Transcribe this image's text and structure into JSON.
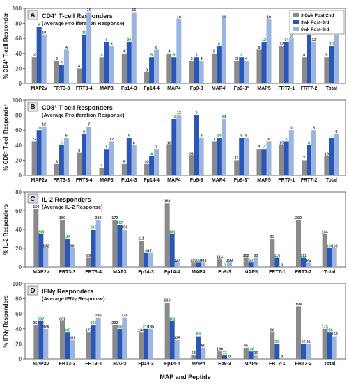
{
  "colors": {
    "series1": "#8a8a8a",
    "series2": "#2a56b8",
    "series3": "#9bb4e0",
    "count_label_color": "#1a9a3a",
    "letter_box": "#dfe6f2"
  },
  "legend": [
    "3.6wk Post-2nd",
    "3wk Post-3rd",
    "6wk Post-3rd"
  ],
  "xlabel": "MAP and Peptide",
  "chart_data": [
    {
      "type": "bar",
      "panel_letter": "A",
      "title_prefix": "CD4",
      "title_superscript": "+",
      "title_suffix": " T-cell Responders",
      "subtitle": "(Average Proliferation Response)",
      "ylabel_prefix": "% CD4",
      "ylabel_superscript": "+",
      "ylabel_suffix": " T-cell Responder",
      "ylim": [
        0,
        100
      ],
      "yticks": [
        0,
        20,
        40,
        60,
        80,
        100
      ],
      "categories": [
        "MAP2v",
        "FRT3-3",
        "FRT3-4",
        "MAP3",
        "Fp14-3",
        "Fp14-4",
        "MAP4",
        "Fp9-3",
        "MAP4'",
        "Fp9-3''",
        "MAP5",
        "FRT7-1",
        "FRT7-2",
        "Total"
      ],
      "series": [
        {
          "name": "3.6wk Post-2nd",
          "values": [
            35,
            30,
            20,
            35,
            40,
            15,
            40,
            30,
            40,
            30,
            45,
            50,
            35,
            35
          ],
          "labels": [
            "10",
            "3",
            "4",
            "3",
            "4",
            "3",
            "4",
            "3",
            "3",
            "3",
            "9",
            "12",
            "4",
            "5"
          ]
        },
        {
          "name": "3wk Post-3rd",
          "values": [
            75,
            25,
            65,
            55,
            55,
            35,
            35,
            35,
            50,
            35,
            55,
            55,
            65,
            50
          ],
          "labels": [
            "9",
            "4",
            "10",
            "6",
            "30",
            "5",
            "9",
            "3",
            "4",
            "3",
            "12",
            "14",
            "12",
            "10"
          ]
        },
        {
          "name": "6wk Post-3rd",
          "values": [
            65,
            45,
            95,
            50,
            95,
            45,
            85,
            30,
            85,
            30,
            85,
            60,
            55,
            65
          ],
          "labels": [
            "10",
            "4",
            "10",
            "5",
            "16",
            "6",
            "10",
            "4",
            "10",
            "4",
            "10",
            "10",
            "12",
            "9"
          ]
        }
      ]
    },
    {
      "type": "bar",
      "panel_letter": "B",
      "title_prefix": "CD8",
      "title_superscript": "+",
      "title_suffix": " T-cell Responders",
      "subtitle": "(Average Proliferation Response)",
      "ylabel_prefix": "% CD8",
      "ylabel_superscript": "+",
      "ylabel_suffix": " T-cell Responder",
      "ylim": [
        0,
        100
      ],
      "yticks": [
        0,
        20,
        40,
        60,
        80,
        100
      ],
      "categories": [
        "MAP2v",
        "FRT3-3",
        "FRT3-4",
        "MAP3",
        "Fp14-3",
        "Fp14-4",
        "MAP4",
        "Fp9-3",
        "MAP4'",
        "Fp9-3''",
        "MAP5",
        "FRT7-1",
        "FRT7-2",
        "Total"
      ],
      "series": [
        {
          "name": "3.6wk Post-2nd",
          "values": [
            45,
            15,
            30,
            10,
            15,
            15,
            40,
            25,
            45,
            20,
            35,
            40,
            20,
            25
          ],
          "labels": [
            "27",
            "3",
            "3",
            "4",
            "5",
            "30",
            "12",
            "21",
            "7",
            "11",
            "4",
            "15",
            "7",
            "13"
          ]
        },
        {
          "name": "3wk Post-3rd",
          "values": [
            60,
            40,
            55,
            35,
            50,
            25,
            75,
            80,
            50,
            50,
            35,
            45,
            40,
            50
          ],
          "labels": [
            "10",
            "6",
            "6",
            "5",
            "9",
            "4",
            "14",
            "9",
            "14",
            "8",
            "7",
            "7",
            "3",
            "7"
          ]
        },
        {
          "name": "6wk Post-3rd",
          "values": [
            65,
            50,
            65,
            45,
            40,
            35,
            80,
            50,
            75,
            50,
            45,
            60,
            60,
            55
          ],
          "labels": [
            "12",
            "5",
            "7",
            "12",
            "6",
            "3",
            "13",
            "8",
            "13",
            "8",
            "6",
            "10",
            "8",
            "8"
          ]
        }
      ]
    },
    {
      "type": "bar",
      "panel_letter": "C",
      "title_prefix": "IL-2 Responders",
      "title_superscript": "",
      "title_suffix": "",
      "subtitle": "(Average IL-2 Response)",
      "ylabel_prefix": "% IL-2 Responders",
      "ylabel_superscript": "",
      "ylabel_suffix": "",
      "ylim": [
        0,
        80
      ],
      "yticks": [
        0,
        20,
        40,
        60,
        80
      ],
      "categories": [
        "MAP2v",
        "FRT3-3",
        "FRT3-4",
        "MAP3",
        "Fp14-3",
        "Fp14-4",
        "MAP4",
        "Fp9-3",
        "MAP5",
        "FRT7-1",
        "FRT7-2",
        "Total"
      ],
      "series": [
        {
          "name": "3.6wk Post-2nd",
          "values": [
            62,
            50,
            10,
            50,
            28,
            68,
            5,
            8,
            10,
            30,
            50,
            35
          ],
          "labels": [
            "159",
            "180",
            "69",
            "170",
            "111",
            "161",
            "150",
            "114",
            "102",
            "93",
            "282",
            "134"
          ]
        },
        {
          "name": "3wk Post-3rd",
          "values": [
            35,
            30,
            40,
            45,
            15,
            35,
            5,
            0,
            5,
            10,
            10,
            20
          ],
          "labels": [
            "239",
            "124",
            "317",
            "167",
            "196",
            "101",
            "99",
            "0",
            "50",
            "110",
            "111",
            "136"
          ]
        },
        {
          "name": "6wk Post-3rd",
          "values": [
            20,
            20,
            50,
            40,
            15,
            5,
            5,
            5,
            10,
            0,
            5,
            20
          ],
          "labels": [
            "102",
            "90",
            "314",
            "156",
            "171",
            "127",
            "493",
            "199",
            "53",
            "0",
            "142",
            "169"
          ]
        }
      ]
    },
    {
      "type": "bar",
      "panel_letter": "D",
      "title_prefix": "IFNγ Responders",
      "title_superscript": "",
      "title_suffix": "",
      "subtitle": "(Average IFNγ Response)",
      "ylabel_prefix": "% IFNγ Responders",
      "ylabel_superscript": "",
      "ylabel_suffix": "",
      "ylim": [
        0,
        100
      ],
      "yticks": [
        0,
        20,
        40,
        60,
        80,
        100
      ],
      "categories": [
        "MAP2v",
        "FRT3-3",
        "FRT3-4",
        "MAP3",
        "Fp14-3",
        "Fp14-4",
        "MAP4",
        "Fp9-3",
        "MAP5",
        "FRT7-1",
        "FRT7-2",
        "Total"
      ],
      "series": [
        {
          "name": "3.6wk Post-2nd",
          "values": [
            45,
            50,
            35,
            45,
            35,
            75,
            5,
            10,
            15,
            35,
            70,
            40
          ],
          "labels": [
            "251",
            "331",
            "177",
            "232",
            "134",
            "210",
            "63",
            "196",
            "65",
            "96",
            "194",
            "173"
          ]
        },
        {
          "name": "3wk Post-3rd",
          "values": [
            50,
            35,
            45,
            40,
            40,
            50,
            30,
            5,
            10,
            20,
            20,
            35
          ],
          "labels": [
            "537",
            "845",
            "258",
            "169",
            "210",
            "161",
            "68",
            "72",
            "140",
            "59",
            "92",
            "236"
          ]
        },
        {
          "name": "6wk Post-3rd",
          "values": [
            40,
            25,
            55,
            55,
            40,
            25,
            15,
            0,
            5,
            0,
            20,
            30
          ],
          "labels": [
            "326",
            "351",
            "246",
            "178",
            "185",
            "125",
            "60",
            "0",
            "25",
            "0",
            "61",
            "163"
          ]
        }
      ]
    }
  ]
}
